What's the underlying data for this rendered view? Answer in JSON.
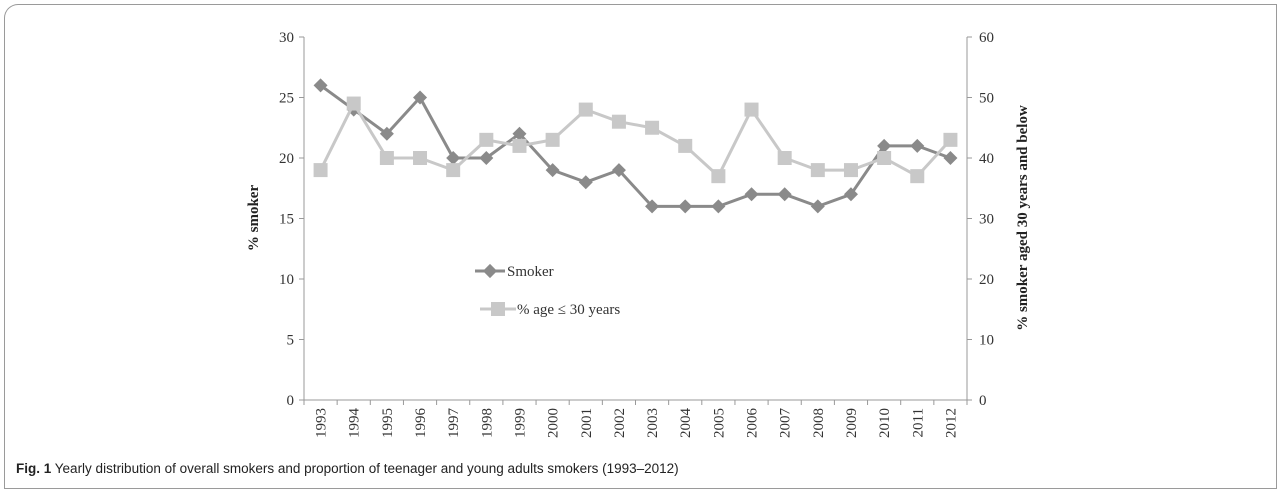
{
  "caption": {
    "label": "Fig. 1",
    "text": "Yearly distribution of overall smokers and proportion of teenager and young adults smokers (1993–2012)"
  },
  "chart_data": {
    "type": "line",
    "x": [
      "1993",
      "1994",
      "1995",
      "1996",
      "1997",
      "1998",
      "1999",
      "2000",
      "2001",
      "2002",
      "2003",
      "2004",
      "2005",
      "2006",
      "2007",
      "2008",
      "2009",
      "2010",
      "2011",
      "2012"
    ],
    "ylabel": "% smoker",
    "y2label": "% smoker aged 30 years and below",
    "ylim": [
      0,
      30
    ],
    "y2lim": [
      0,
      60
    ],
    "yticks": [
      "0",
      "5",
      "10",
      "15",
      "20",
      "25",
      "30"
    ],
    "y2ticks": [
      "0",
      "10",
      "20",
      "30",
      "40",
      "50",
      "60"
    ],
    "legend_position": "center-left",
    "series": [
      {
        "name": "Smoker",
        "axis": "left",
        "marker": "diamond",
        "color": "#8a8a8a",
        "values": [
          26,
          24,
          22,
          25,
          20,
          20,
          22,
          19,
          18,
          19,
          16,
          16,
          16,
          17,
          17,
          16,
          17,
          21,
          21,
          20
        ]
      },
      {
        "name": "% age ≤ 30 years",
        "axis": "right",
        "marker": "square",
        "color": "#c8c8c8",
        "values": [
          38,
          49,
          40,
          40,
          38,
          43,
          42,
          43,
          48,
          46,
          45,
          42,
          37,
          48,
          40,
          38,
          38,
          40,
          37,
          43
        ]
      }
    ]
  }
}
